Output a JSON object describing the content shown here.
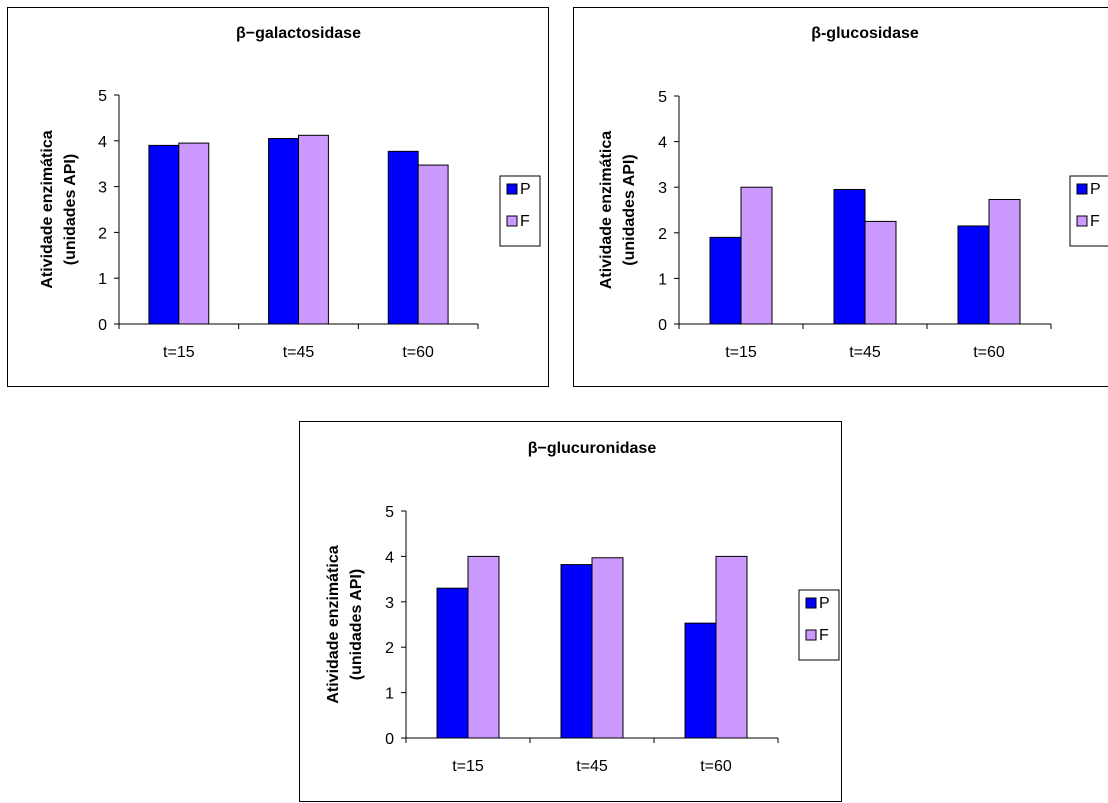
{
  "chart_data": [
    {
      "type": "bar",
      "title": "β−galactosidase",
      "ylabel_line1": "Atividade enzimática",
      "ylabel_line2": "(unidades API)",
      "xlabel": "",
      "categories": [
        "t=15",
        "t=45",
        "t=60"
      ],
      "ylim": [
        0,
        5
      ],
      "yticks": [
        0,
        1,
        2,
        3,
        4,
        5
      ],
      "grid": false,
      "legend_position": "right",
      "series": [
        {
          "name": "P",
          "color": "#0000ff",
          "values": [
            3.9,
            4.05,
            3.77
          ]
        },
        {
          "name": "F",
          "color": "#cc99ff",
          "values": [
            3.95,
            4.12,
            3.47
          ]
        }
      ]
    },
    {
      "type": "bar",
      "title": "β-glucosidase",
      "ylabel_line1": "Atividade enzimática",
      "ylabel_line2": "(unidades API)",
      "xlabel": "",
      "categories": [
        "t=15",
        "t=45",
        "t=60"
      ],
      "ylim": [
        0,
        5
      ],
      "yticks": [
        0,
        1,
        2,
        3,
        4,
        5
      ],
      "grid": false,
      "legend_position": "right",
      "series": [
        {
          "name": "P",
          "color": "#0000ff",
          "values": [
            1.9,
            2.95,
            2.15
          ]
        },
        {
          "name": "F",
          "color": "#cc99ff",
          "values": [
            3.0,
            2.25,
            2.73
          ]
        }
      ]
    },
    {
      "type": "bar",
      "title": "β−glucuronidase",
      "ylabel_line1": "Atividade enzimática",
      "ylabel_line2": "(unidades API)",
      "xlabel": "",
      "categories": [
        "t=15",
        "t=45",
        "t=60"
      ],
      "ylim": [
        0,
        5
      ],
      "yticks": [
        0,
        1,
        2,
        3,
        4,
        5
      ],
      "grid": false,
      "legend_position": "right",
      "series": [
        {
          "name": "P",
          "color": "#0000ff",
          "values": [
            3.3,
            3.82,
            2.53
          ]
        },
        {
          "name": "F",
          "color": "#cc99ff",
          "values": [
            4.0,
            3.97,
            4.0
          ]
        }
      ]
    }
  ]
}
